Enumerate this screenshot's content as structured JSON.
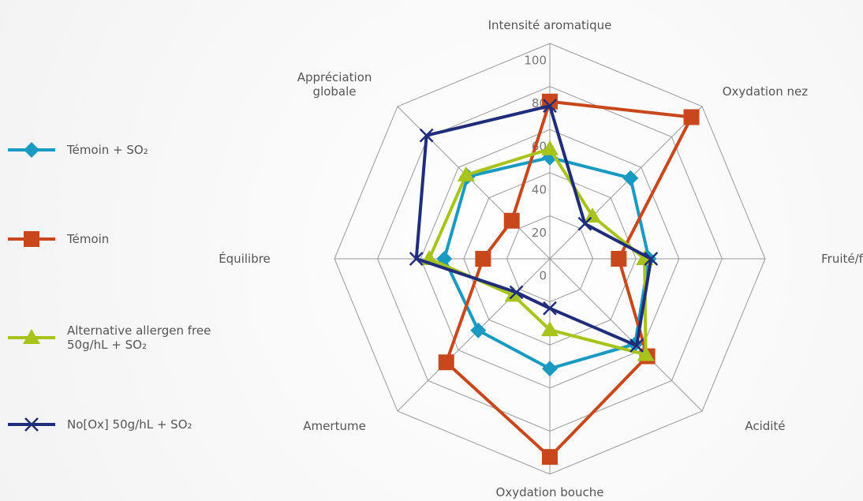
{
  "chart_data": {
    "type": "radar",
    "categories": [
      "Intensité aromatique",
      "Oxydation nez",
      "Fruité/floral",
      "Acidité",
      "Oxydation bouche",
      "Amertume",
      "Équilibre",
      "Appréciation globale"
    ],
    "series": [
      {
        "name": "Témoin + SO₂",
        "color": "#1a9ac0",
        "marker": "diamond",
        "values": [
          47,
          53,
          46,
          56,
          51,
          47,
          49,
          54
        ]
      },
      {
        "name": "Témoin",
        "color": "#c8471c",
        "marker": "square",
        "values": [
          73,
          93,
          32,
          64,
          92,
          68,
          31,
          25
        ]
      },
      {
        "name": "Alternative allergen free 50g/hL + SO₂",
        "color": "#a8c41c",
        "marker": "triangle",
        "values": [
          51,
          28,
          44,
          63,
          33,
          24,
          56,
          55
        ]
      },
      {
        "name": "No[Ox] 50g/hL + SO₂",
        "color": "#1f2d7a",
        "marker": "x",
        "values": [
          71,
          23,
          47,
          57,
          23,
          22,
          62,
          81
        ]
      }
    ],
    "rlim": [
      0,
      100
    ],
    "rticks": [
      0,
      20,
      40,
      60,
      80,
      100
    ],
    "grid": true,
    "legend": "left"
  }
}
